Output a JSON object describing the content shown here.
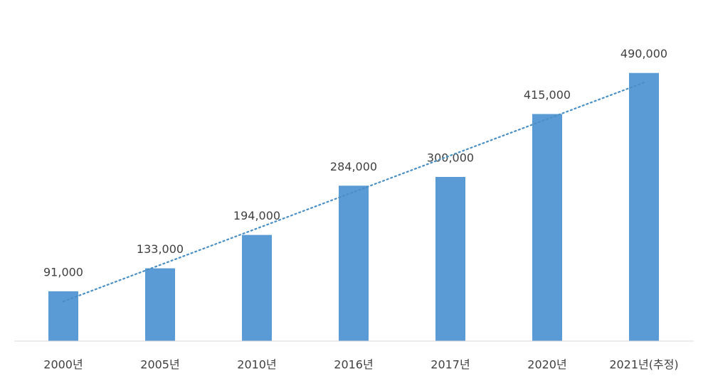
{
  "chart_data": {
    "type": "bar",
    "categories": [
      "2000년",
      "2005년",
      "2010년",
      "2016년",
      "2017년",
      "2020년",
      "2021년(추정)"
    ],
    "values": [
      91000,
      133000,
      194000,
      284000,
      300000,
      415000,
      490000
    ],
    "value_labels": [
      "91,000",
      "133,000",
      "194,000",
      "284,000",
      "300,000",
      "415,000",
      "490,000"
    ],
    "color": "#5b9bd5",
    "ylim": [
      0,
      600000
    ],
    "trendline": "linear",
    "trendline_color": "#4a8fc4"
  }
}
